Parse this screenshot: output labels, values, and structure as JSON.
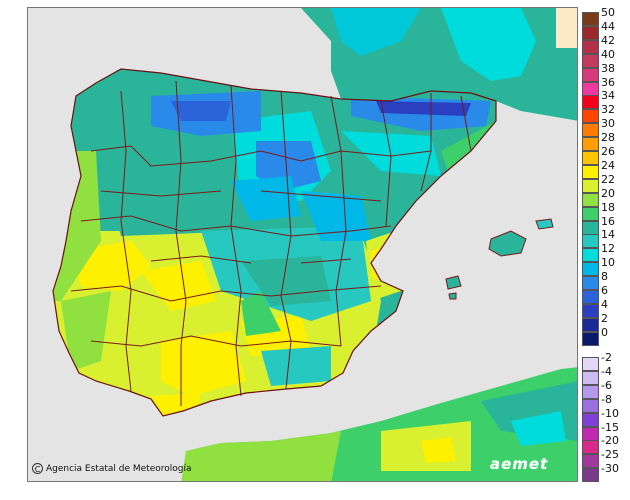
{
  "credit": {
    "symbol": "C",
    "text": "Agencia Estatal de Meteorología"
  },
  "brand": "aemet",
  "legend": {
    "positive": [
      {
        "label": "50",
        "color": "#7a3a1c"
      },
      {
        "label": "44",
        "color": "#9a2a2a"
      },
      {
        "label": "42",
        "color": "#b3304a"
      },
      {
        "label": "40",
        "color": "#c23a5e"
      },
      {
        "label": "38",
        "color": "#d63a7a"
      },
      {
        "label": "36",
        "color": "#ee3aa0"
      },
      {
        "label": "34",
        "color": "#f5001a"
      },
      {
        "label": "32",
        "color": "#ff4500"
      },
      {
        "label": "30",
        "color": "#ff7a00"
      },
      {
        "label": "28",
        "color": "#ff9e00"
      },
      {
        "label": "26",
        "color": "#ffc300"
      },
      {
        "label": "24",
        "color": "#fff000"
      },
      {
        "label": "22",
        "color": "#d8f030"
      },
      {
        "label": "20",
        "color": "#90e040"
      },
      {
        "label": "18",
        "color": "#3ccf6a"
      },
      {
        "label": "16",
        "color": "#2ab59a"
      },
      {
        "label": "14",
        "color": "#26c8c0"
      },
      {
        "label": "12",
        "color": "#00dcdc"
      },
      {
        "label": "10",
        "color": "#00b8e8"
      },
      {
        "label": "8",
        "color": "#2a8aea"
      },
      {
        "label": "6",
        "color": "#2a64d8"
      },
      {
        "label": "4",
        "color": "#2a40c0"
      },
      {
        "label": "2",
        "color": "#1a2a98"
      },
      {
        "label": "0",
        "color": "#0a1a6a"
      }
    ],
    "negative": [
      {
        "label": "-2",
        "color": "#e2d8f6"
      },
      {
        "label": "-4",
        "color": "#cdbcf0"
      },
      {
        "label": "-6",
        "color": "#b498ea"
      },
      {
        "label": "-8",
        "color": "#9a70e0"
      },
      {
        "label": "-10",
        "color": "#8040d8"
      },
      {
        "label": "-15",
        "color": "#c02ab0"
      },
      {
        "label": "-20",
        "color": "#d82a8a"
      },
      {
        "label": "-25",
        "color": "#a03a9a"
      },
      {
        "label": "-30",
        "color": "#7a3a8a"
      }
    ]
  }
}
